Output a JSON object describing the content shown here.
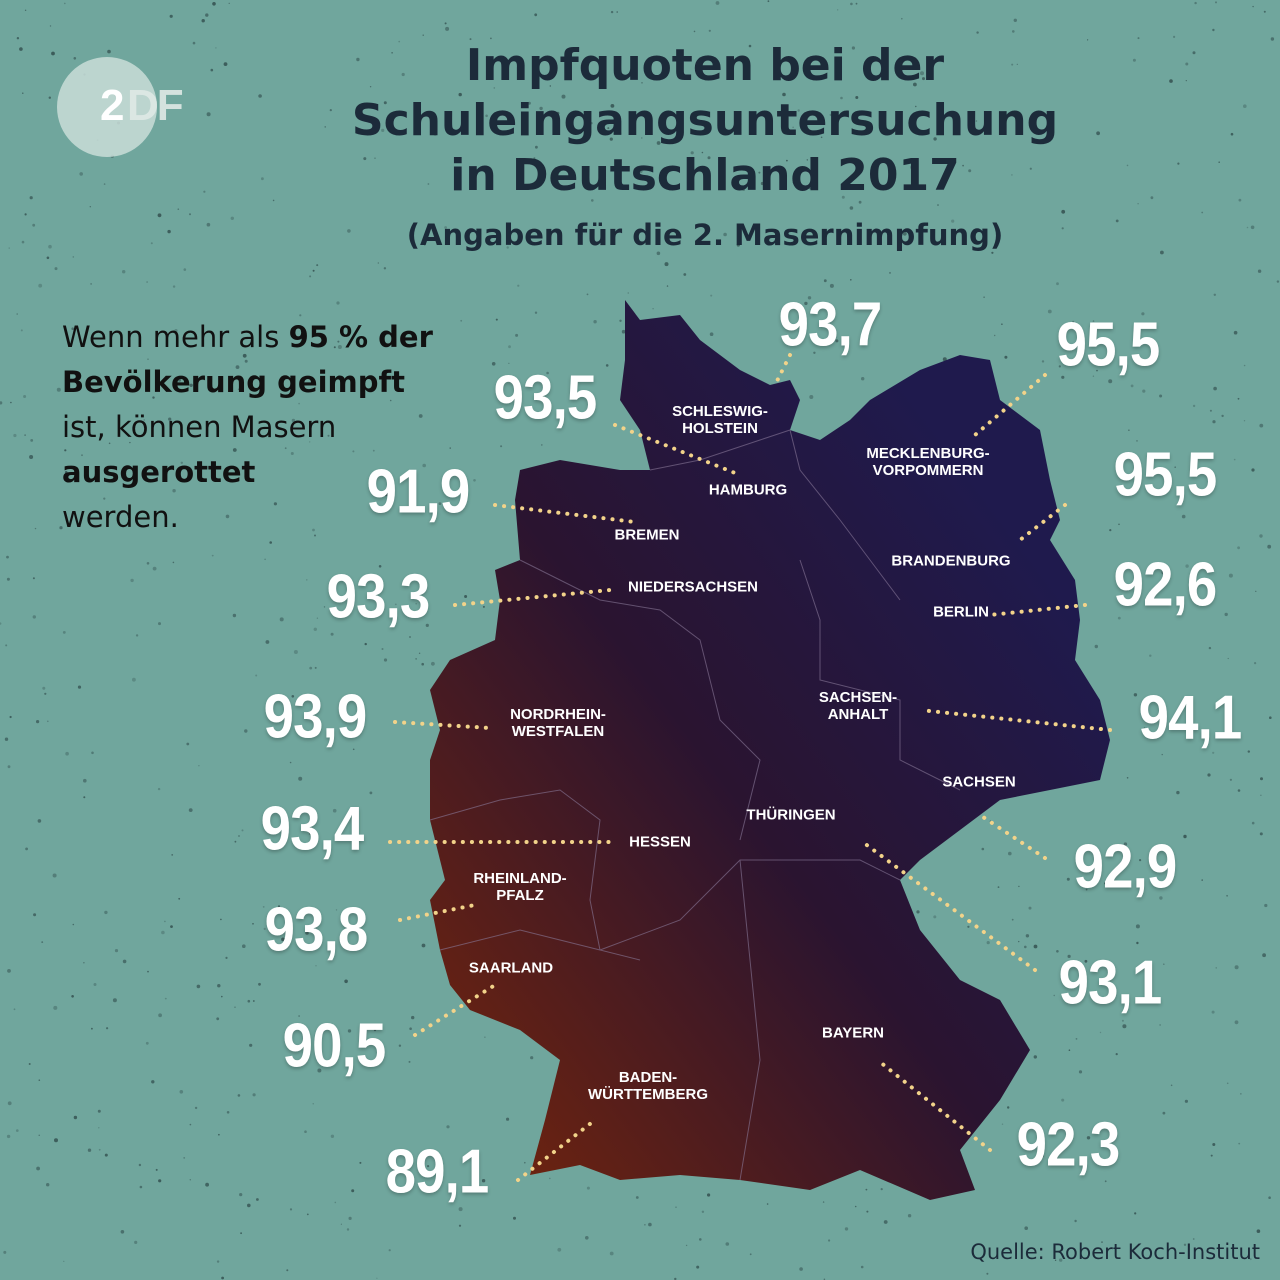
{
  "logo": {
    "text": "2DF",
    "icon": "zdf-logo"
  },
  "title": {
    "lines": [
      "Impfquoten bei der",
      "Schuleingangsuntersuchung",
      "in Deutschland 2017"
    ],
    "subtitle": "(Angaben für die 2. Masernimpfung)"
  },
  "intro": {
    "t1": "Wenn mehr als ",
    "b1": "95 % der",
    "b2": "Bevölkerung geimpft",
    "t2": "ist, können Masern",
    "b3": "ausgerottet",
    "t3": "werden."
  },
  "colors": {
    "background": "#70a69d",
    "map_north": "#1f1a4d",
    "map_south": "#6b1f0c",
    "leader": "#f2d38a"
  },
  "states": [
    {
      "name": "SCHLESWIG-\nHOLSTEIN",
      "value": "93,7"
    },
    {
      "name": "MECKLENBURG-\nVORPOMMERN",
      "value": "95,5"
    },
    {
      "name": "HAMBURG",
      "value": "93,5"
    },
    {
      "name": "BREMEN",
      "value": "91,9"
    },
    {
      "name": "BRANDENBURG",
      "value": "95,5"
    },
    {
      "name": "NIEDERSACHSEN",
      "value": "93,3"
    },
    {
      "name": "BERLIN",
      "value": "92,6"
    },
    {
      "name": "NORDRHEIN-\nWESTFALEN",
      "value": "93,9"
    },
    {
      "name": "SACHSEN-\nANHALT",
      "value": "94,1"
    },
    {
      "name": "HESSEN",
      "value": "93,4"
    },
    {
      "name": "SACHSEN",
      "value": "92,9"
    },
    {
      "name": "RHEINLAND-\nPFALZ",
      "value": "93,8"
    },
    {
      "name": "THÜRINGEN",
      "value": "93,1"
    },
    {
      "name": "SAARLAND",
      "value": "90,5"
    },
    {
      "name": "BAYERN",
      "value": "92,3"
    },
    {
      "name": "BADEN-\nWÜRTTEMBERG",
      "value": "89,1"
    }
  ],
  "source": "Quelle: Robert Koch-Institut"
}
